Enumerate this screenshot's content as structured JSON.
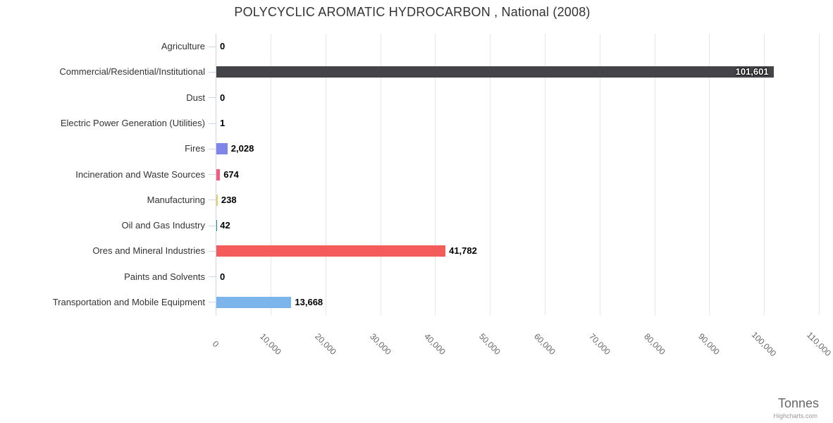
{
  "header": {
    "title": "POLYCYCLIC AROMATIC HYDROCARBON , National (2008)"
  },
  "footer": {
    "credits": "Highcharts.com"
  },
  "chart_data": {
    "type": "bar",
    "orientation": "horizontal",
    "title": "POLYCYCLIC AROMATIC HYDROCARBON , National (2008)",
    "xlabel": "Tonnes",
    "ylabel": "",
    "xlim": [
      0,
      110000
    ],
    "grid": true,
    "legend": false,
    "axis_colors": {
      "grid": "#e6e6e6",
      "axis_line": "#ccd6eb",
      "tick": "#ccd6eb"
    },
    "xticks": {
      "values": [
        0,
        10000,
        20000,
        30000,
        40000,
        50000,
        60000,
        70000,
        80000,
        90000,
        100000,
        110000
      ],
      "labels": [
        "0",
        "10,000",
        "20,000",
        "30,000",
        "40,000",
        "50,000",
        "60,000",
        "70,000",
        "80,000",
        "90,000",
        "100,000",
        "110,000"
      ]
    },
    "categories": [
      "Agriculture",
      "Commercial/Residential/Institutional",
      "Dust",
      "Electric Power Generation (Utilities)",
      "Fires",
      "Incineration and Waste Sources",
      "Manufacturing",
      "Oil and Gas Industry",
      "Ores and Mineral Industries",
      "Paints and Solvents",
      "Transportation and Mobile Equipment"
    ],
    "points": [
      {
        "category": "Agriculture",
        "value": 0,
        "label": "0",
        "color": "#7cb5ec"
      },
      {
        "category": "Commercial/Residential/Institutional",
        "value": 101601,
        "label": "101,601",
        "color": "#434348",
        "label_inside": true
      },
      {
        "category": "Dust",
        "value": 0,
        "label": "0",
        "color": "#90ed7d"
      },
      {
        "category": "Electric Power Generation (Utilities)",
        "value": 1,
        "label": "1",
        "color": "#f7a35c"
      },
      {
        "category": "Fires",
        "value": 2028,
        "label": "2,028",
        "color": "#8085e9"
      },
      {
        "category": "Incineration and Waste Sources",
        "value": 674,
        "label": "674",
        "color": "#f15c80"
      },
      {
        "category": "Manufacturing",
        "value": 238,
        "label": "238",
        "color": "#e4d354"
      },
      {
        "category": "Oil and Gas Industry",
        "value": 42,
        "label": "42",
        "color": "#2b908f"
      },
      {
        "category": "Ores and Mineral Industries",
        "value": 41782,
        "label": "41,782",
        "color": "#f45b5b"
      },
      {
        "category": "Paints and Solvents",
        "value": 0,
        "label": "0",
        "color": "#91e8e1"
      },
      {
        "category": "Transportation and Mobile Equipment",
        "value": 13668,
        "label": "13,668",
        "color": "#7cb5ec"
      }
    ]
  }
}
